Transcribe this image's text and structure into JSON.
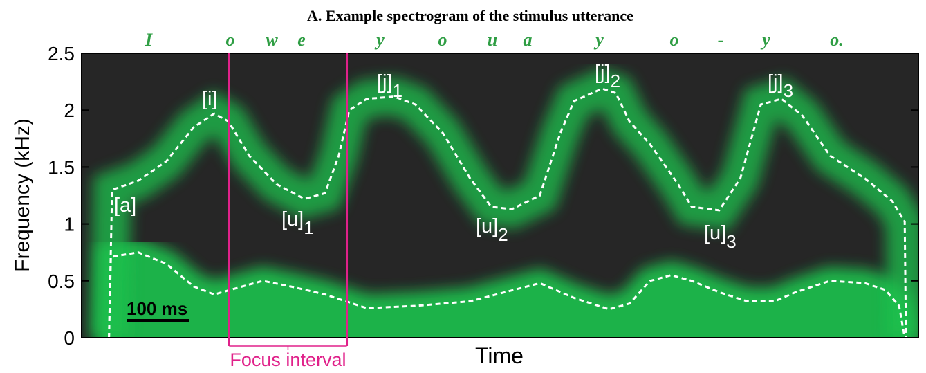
{
  "chart_data": {
    "type": "line",
    "title": "A. Example spectrogram of the stimulus utterance",
    "transcript": [
      "I",
      "o",
      "w",
      "e",
      "y",
      "o",
      "u",
      "a",
      "y",
      "o",
      "-",
      "y",
      "o."
    ],
    "transcript_color": "#2f9e44",
    "y_label": "Frequency (kHz)",
    "x_label": "Time",
    "ylim": [
      0,
      2.5
    ],
    "yticks": [
      0,
      0.5,
      1,
      1.5,
      2,
      2.5
    ],
    "xlim": [
      0,
      1344
    ],
    "background_color": "#262626",
    "energy_color": "#1fc24e",
    "series": [
      {
        "color": "#ffffff",
        "x": [
          44,
          49,
          91,
          136,
          180,
          213,
          236,
          269,
          313,
          358,
          391,
          413,
          430,
          458,
          502,
          536,
          580,
          624,
          658,
          691,
          736,
          769,
          791,
          836,
          858,
          880,
          913,
          958,
          980,
          1024,
          1058,
          1091,
          1124,
          1158,
          1202,
          1258,
          1302,
          1322,
          1324
        ],
        "values": [
          0,
          1.3,
          1.38,
          1.55,
          1.85,
          1.97,
          1.9,
          1.6,
          1.35,
          1.22,
          1.27,
          1.6,
          2.0,
          2.1,
          2.12,
          2.05,
          1.8,
          1.4,
          1.15,
          1.13,
          1.25,
          1.8,
          2.08,
          2.19,
          2.15,
          1.9,
          1.7,
          1.35,
          1.15,
          1.12,
          1.4,
          2.05,
          2.1,
          1.95,
          1.6,
          1.4,
          1.2,
          1.02,
          0
        ]
      },
      {
        "color": "#ffffff",
        "x": [
          44,
          47,
          91,
          136,
          180,
          213,
          258,
          291,
          336,
          391,
          458,
          536,
          624,
          736,
          791,
          847,
          880,
          913,
          947,
          980,
          1024,
          1069,
          1113,
          1147,
          1202,
          1258,
          1291,
          1313,
          1322
        ],
        "values": [
          0,
          0.71,
          0.75,
          0.65,
          0.45,
          0.38,
          0.45,
          0.5,
          0.45,
          0.38,
          0.26,
          0.28,
          0.32,
          0.48,
          0.35,
          0.25,
          0.3,
          0.5,
          0.55,
          0.5,
          0.4,
          0.32,
          0.32,
          0.4,
          0.5,
          0.48,
          0.42,
          0.28,
          0
        ]
      }
    ],
    "annotations": [
      {
        "text": "[a]"
      },
      {
        "text": "[i]"
      },
      {
        "text": "[u]",
        "sub": "1"
      },
      {
        "text": "[j]",
        "sub": "1"
      },
      {
        "text": "[u]",
        "sub": "2"
      },
      {
        "text": "[j]",
        "sub": "2"
      },
      {
        "text": "[u]",
        "sub": "3"
      },
      {
        "text": "[j]",
        "sub": "3"
      }
    ],
    "focus_interval": {
      "label": "Focus interval",
      "x": [
        237,
        426
      ],
      "color": "#e0218a"
    },
    "scale_bar": {
      "label": "100 ms",
      "length": 100
    }
  }
}
